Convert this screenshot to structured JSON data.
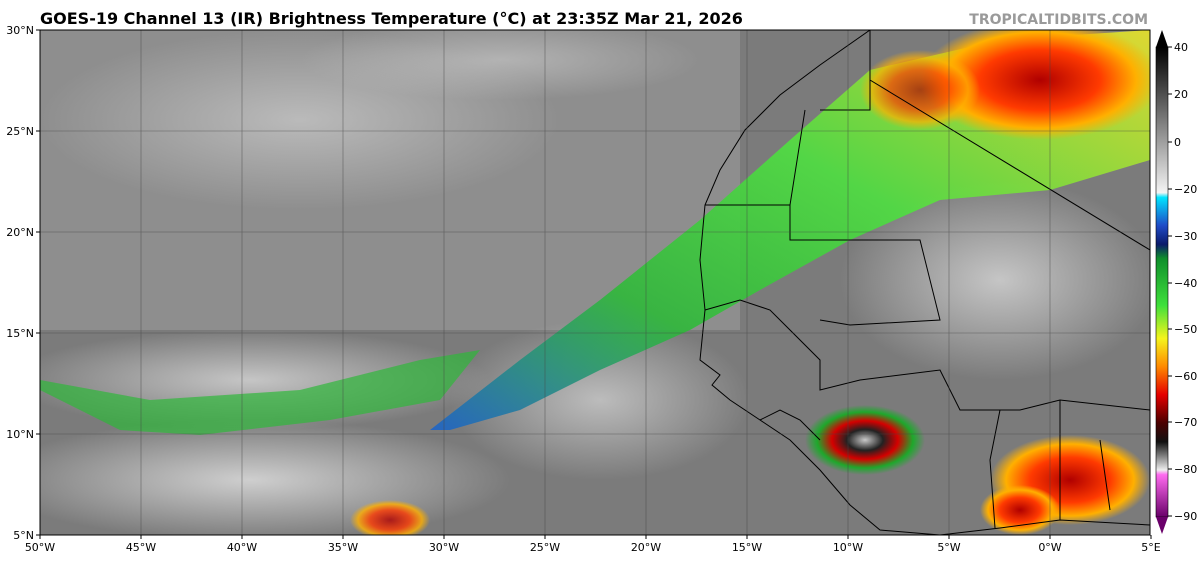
{
  "header": {
    "title": "GOES-19 Channel 13 (IR) Brightness Temperature (°C) at 23:35Z Mar 21, 2026",
    "source": "TROPICALTIDBITS.COM"
  },
  "map": {
    "latitude_labels": [
      "30°N",
      "25°N",
      "20°N",
      "15°N",
      "10°N",
      "5°N"
    ],
    "longitude_labels": [
      "50°W",
      "45°W",
      "40°W",
      "35°W",
      "30°W",
      "25°W",
      "20°W",
      "15°W",
      "10°W",
      "5°W",
      "0°W",
      "5°E"
    ]
  },
  "colorbar": {
    "tick_labels": [
      "40",
      "20",
      "0",
      "−20",
      "−30",
      "−40",
      "−50",
      "−60",
      "−70",
      "−80",
      "−90"
    ]
  }
}
